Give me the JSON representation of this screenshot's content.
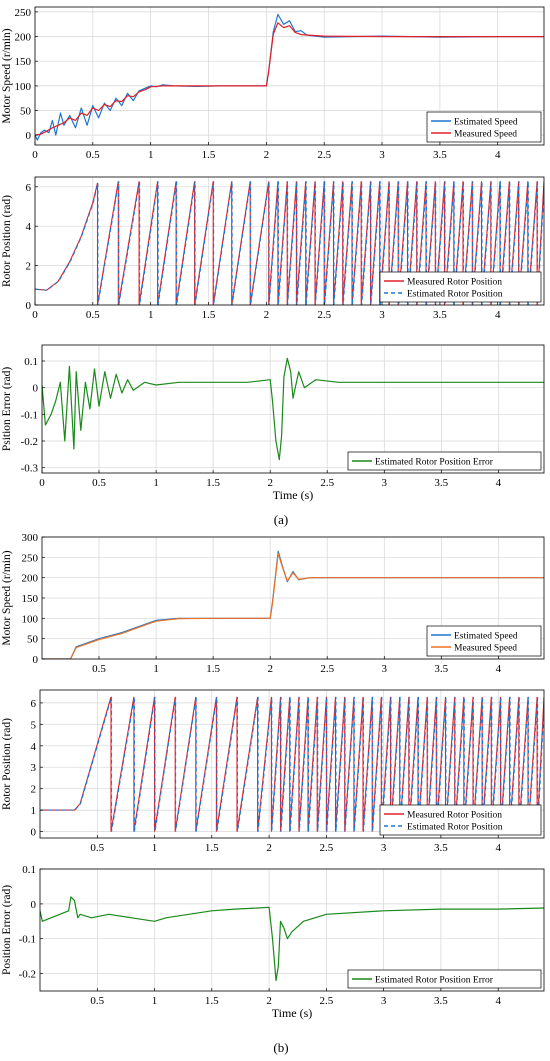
{
  "colors": {
    "blue": "#1f77d0",
    "red": "#e0202a",
    "orange": "#f07020",
    "green": "#1a8a1a",
    "grid": "#d6d6d6",
    "axis": "#000000"
  },
  "captions": {
    "a": "(a)",
    "b": "(b)"
  },
  "chart_data": [
    {
      "id": "a1",
      "type": "line",
      "ylabel": "Motor Speed (r/min)",
      "xlabel": "",
      "xlim": [
        0,
        4.4
      ],
      "ylim": [
        -20,
        260
      ],
      "xticks": [
        0,
        0.5,
        1,
        1.5,
        2,
        2.5,
        3,
        3.5,
        4
      ],
      "xtick_labels": [
        "0",
        "0.5",
        "1",
        "1.5",
        "2",
        "2.5",
        "3",
        "3.5",
        "4"
      ],
      "yticks": [
        0,
        50,
        100,
        150,
        200,
        250
      ],
      "ytick_labels": [
        "0",
        "50",
        "100",
        "150",
        "200",
        "250"
      ],
      "grid": true,
      "legend": "bottom-right",
      "series": [
        {
          "name": "Estimated Speed",
          "color": "#1f77d0",
          "style": "solid",
          "x": [
            0,
            0.02,
            0.05,
            0.08,
            0.12,
            0.15,
            0.18,
            0.22,
            0.25,
            0.3,
            0.35,
            0.4,
            0.45,
            0.5,
            0.55,
            0.6,
            0.65,
            0.7,
            0.75,
            0.8,
            0.85,
            0.9,
            0.95,
            1.0,
            1.05,
            1.1,
            1.2,
            1.4,
            1.6,
            1.8,
            2.0,
            2.02,
            2.06,
            2.1,
            2.15,
            2.2,
            2.25,
            2.3,
            2.35,
            2.5,
            3.0,
            3.5,
            4.0,
            4.4
          ],
          "y": [
            0,
            -10,
            5,
            10,
            5,
            30,
            0,
            45,
            20,
            40,
            15,
            55,
            20,
            60,
            35,
            65,
            50,
            75,
            60,
            85,
            70,
            90,
            95,
            100,
            98,
            102,
            100,
            99,
            100,
            100,
            100,
            130,
            210,
            245,
            225,
            232,
            210,
            212,
            203,
            199,
            201,
            199,
            200,
            200
          ]
        },
        {
          "name": "Measured Speed",
          "color": "#e0202a",
          "style": "solid",
          "x": [
            0,
            0.05,
            0.1,
            0.15,
            0.2,
            0.25,
            0.3,
            0.35,
            0.4,
            0.45,
            0.5,
            0.55,
            0.6,
            0.65,
            0.7,
            0.75,
            0.8,
            0.85,
            0.9,
            0.95,
            1.0,
            1.1,
            1.2,
            1.4,
            1.6,
            1.8,
            2.0,
            2.02,
            2.06,
            2.1,
            2.15,
            2.2,
            2.25,
            2.3,
            2.5,
            3.0,
            3.5,
            4.0,
            4.4
          ],
          "y": [
            0,
            2,
            8,
            15,
            20,
            25,
            35,
            30,
            45,
            40,
            55,
            50,
            62,
            58,
            70,
            68,
            80,
            78,
            88,
            92,
            98,
            100,
            100,
            100,
            100,
            100,
            100,
            130,
            205,
            228,
            218,
            222,
            208,
            204,
            201,
            200,
            200,
            200,
            200
          ]
        }
      ]
    },
    {
      "id": "a2",
      "type": "line",
      "ylabel": "Rotor Position (rad)",
      "xlabel": "",
      "xlim": [
        0,
        4.4
      ],
      "ylim": [
        0,
        6.5
      ],
      "xticks": [
        0,
        0.5,
        1,
        1.5,
        2,
        2.5,
        3,
        3.5,
        4
      ],
      "xtick_labels": [
        "0",
        "0.5",
        "1",
        "1.5",
        "2",
        "2.5",
        "3",
        "3.5",
        "4"
      ],
      "yticks": [
        0,
        2,
        4,
        6
      ],
      "ytick_labels": [
        "0",
        "2",
        "4",
        "6"
      ],
      "grid": true,
      "legend": "bottom-right",
      "series": [
        {
          "name": "Measured Rotor Position",
          "color": "#e0202a",
          "style": "solid"
        },
        {
          "name": "Estimated Rotor Position",
          "color": "#1f77d0",
          "style": "dashed"
        }
      ],
      "sawtooth": {
        "start_value": 0.8,
        "ramp": {
          "x": [
            0,
            0.1,
            0.2,
            0.3,
            0.4,
            0.5,
            0.54
          ],
          "y": [
            0.8,
            0.75,
            1.2,
            2.2,
            3.5,
            5.2,
            6.2
          ]
        },
        "wrap_times": [
          0.54,
          0.72,
          0.9,
          1.06,
          1.22,
          1.38,
          1.54,
          1.7,
          1.86,
          2.02,
          2.1,
          2.18,
          2.26,
          2.34,
          2.42,
          2.5,
          2.58,
          2.66,
          2.74,
          2.82,
          2.9,
          2.98,
          3.06,
          3.14,
          3.22,
          3.3,
          3.38,
          3.46,
          3.54,
          3.62,
          3.7,
          3.78,
          3.86,
          3.94,
          4.02,
          4.1,
          4.18,
          4.26,
          4.34,
          4.4
        ]
      }
    },
    {
      "id": "a3",
      "type": "line",
      "ylabel": "Psition Error (rad)",
      "xlabel": "Time (s)",
      "xlim": [
        0,
        4.4
      ],
      "ylim": [
        -0.32,
        0.16
      ],
      "xticks": [
        0,
        0.5,
        1,
        1.5,
        2,
        2.5,
        3,
        3.5,
        4
      ],
      "xtick_labels": [
        "0",
        "0.5",
        "1",
        "1.5",
        "2",
        "2.5",
        "3",
        "3.5",
        "4"
      ],
      "yticks": [
        -0.3,
        -0.2,
        -0.1,
        0,
        0.1
      ],
      "ytick_labels": [
        "-0.3",
        "-0.2",
        "-0.1",
        "0",
        "0.1"
      ],
      "grid": true,
      "legend": "bottom-right",
      "series": [
        {
          "name": "Estimated Rotor Position Error",
          "color": "#1a8a1a",
          "style": "solid",
          "x": [
            0,
            0.03,
            0.08,
            0.12,
            0.16,
            0.2,
            0.24,
            0.28,
            0.3,
            0.34,
            0.38,
            0.42,
            0.46,
            0.5,
            0.55,
            0.6,
            0.65,
            0.7,
            0.75,
            0.8,
            0.9,
            1.0,
            1.2,
            1.5,
            1.8,
            2.0,
            2.02,
            2.05,
            2.08,
            2.1,
            2.12,
            2.15,
            2.18,
            2.2,
            2.25,
            2.3,
            2.4,
            2.6,
            3.0,
            3.5,
            4.0,
            4.4
          ],
          "y": [
            0.01,
            -0.14,
            -0.1,
            -0.05,
            0.02,
            -0.2,
            0.08,
            -0.23,
            0.06,
            -0.16,
            0.02,
            -0.08,
            0.07,
            -0.07,
            0.06,
            -0.04,
            0.05,
            -0.02,
            0.03,
            -0.01,
            0.02,
            0.01,
            0.02,
            0.02,
            0.02,
            0.03,
            -0.05,
            -0.2,
            -0.27,
            -0.18,
            0.04,
            0.11,
            0.06,
            -0.04,
            0.06,
            0.0,
            0.03,
            0.02,
            0.02,
            0.02,
            0.02,
            0.02
          ]
        }
      ]
    },
    {
      "id": "b1",
      "type": "line",
      "ylabel": "Motor Speed (r/min)",
      "xlabel": "",
      "xlim": [
        0,
        4.4
      ],
      "ylim": [
        0,
        300
      ],
      "xticks": [
        0.5,
        1,
        1.5,
        2,
        2.5,
        3,
        3.5,
        4
      ],
      "xtick_labels": [
        "0.5",
        "1",
        "1.5",
        "2",
        "2.5",
        "3",
        "3.5",
        "4"
      ],
      "yticks": [
        0,
        50,
        100,
        150,
        200,
        250,
        300
      ],
      "ytick_labels": [
        "0",
        "50",
        "100",
        "150",
        "200",
        "250",
        "300"
      ],
      "grid": true,
      "legend": "bottom-right",
      "series": [
        {
          "name": "Estimated Speed",
          "color": "#1f77d0",
          "style": "solid",
          "x": [
            0,
            0.25,
            0.3,
            0.35,
            0.5,
            0.7,
            0.9,
            1.0,
            1.2,
            1.5,
            1.8,
            2.0,
            2.02,
            2.07,
            2.1,
            2.15,
            2.2,
            2.25,
            2.35,
            2.5,
            3.0,
            3.5,
            4.0,
            4.4
          ],
          "y": [
            0,
            0,
            30,
            35,
            50,
            65,
            85,
            95,
            100,
            100,
            100,
            100,
            140,
            265,
            235,
            190,
            215,
            195,
            200,
            200,
            200,
            200,
            200,
            200
          ]
        },
        {
          "name": "Measured Speed",
          "color": "#f07020",
          "style": "solid",
          "x": [
            0,
            0.25,
            0.3,
            0.35,
            0.5,
            0.7,
            0.9,
            1.0,
            1.2,
            1.5,
            1.8,
            2.0,
            2.02,
            2.07,
            2.1,
            2.15,
            2.2,
            2.25,
            2.35,
            2.5,
            3.0,
            3.5,
            4.0,
            4.4
          ],
          "y": [
            0,
            0,
            28,
            33,
            48,
            63,
            83,
            93,
            99,
            100,
            100,
            100,
            138,
            260,
            232,
            192,
            212,
            196,
            200,
            200,
            200,
            200,
            200,
            200
          ]
        }
      ]
    },
    {
      "id": "b2",
      "type": "line",
      "ylabel": "Rotor Position (rad)",
      "xlabel": "",
      "xlim": [
        0,
        4.4
      ],
      "ylim": [
        -0.3,
        6.6
      ],
      "xticks": [
        0.5,
        1,
        1.5,
        2,
        2.5,
        3,
        3.5,
        4
      ],
      "xtick_labels": [
        "0.5",
        "1",
        "1.5",
        "2",
        "2.5",
        "3",
        "3.5",
        "4"
      ],
      "yticks": [
        0,
        1,
        2,
        3,
        4,
        5,
        6
      ],
      "ytick_labels": [
        "0",
        "1",
        "2",
        "3",
        "4",
        "5",
        "6"
      ],
      "grid": true,
      "legend": "bottom-right",
      "series": [
        {
          "name": "Measured Rotor Position",
          "color": "#e0202a",
          "style": "solid"
        },
        {
          "name": "Estimated Rotor Position",
          "color": "#1f77d0",
          "style": "dashed"
        }
      ],
      "sawtooth": {
        "start_value": 1.0,
        "ramp": {
          "x": [
            0,
            0.3,
            0.35,
            0.62
          ],
          "y": [
            1.0,
            1.0,
            1.3,
            6.28
          ]
        },
        "wrap_times": [
          0.62,
          0.82,
          1.0,
          1.18,
          1.36,
          1.54,
          1.72,
          1.9,
          2.02,
          2.1,
          2.18,
          2.26,
          2.34,
          2.42,
          2.5,
          2.58,
          2.66,
          2.74,
          2.82,
          2.9,
          2.98,
          3.06,
          3.14,
          3.22,
          3.3,
          3.38,
          3.46,
          3.54,
          3.62,
          3.7,
          3.78,
          3.86,
          3.94,
          4.02,
          4.1,
          4.18,
          4.26,
          4.34,
          4.4
        ]
      }
    },
    {
      "id": "b3",
      "type": "line",
      "ylabel": "Position Error (rad)",
      "xlabel": "Time (s)",
      "xlim": [
        0,
        4.4
      ],
      "ylim": [
        -0.25,
        0.1
      ],
      "xticks": [
        0.5,
        1,
        1.5,
        2,
        2.5,
        3,
        3.5,
        4
      ],
      "xtick_labels": [
        "0.5",
        "1",
        "1.5",
        "2",
        "2.5",
        "3",
        "3.5",
        "4"
      ],
      "yticks": [
        -0.2,
        -0.1,
        0,
        0.1
      ],
      "ytick_labels": [
        "-0.2",
        "-0.1",
        "0",
        "0.1"
      ],
      "grid": true,
      "legend": "bottom-right",
      "series": [
        {
          "name": "Estimated Rotor Position Error",
          "color": "#1a8a1a",
          "style": "solid",
          "x": [
            0,
            0.02,
            0.25,
            0.27,
            0.3,
            0.33,
            0.35,
            0.45,
            0.6,
            0.8,
            1.0,
            1.1,
            1.3,
            1.5,
            1.7,
            1.9,
            2.0,
            2.03,
            2.06,
            2.08,
            2.1,
            2.13,
            2.16,
            2.2,
            2.3,
            2.5,
            3.0,
            3.5,
            4.0,
            4.4
          ],
          "y": [
            -0.02,
            -0.05,
            -0.02,
            0.02,
            0.01,
            -0.04,
            -0.03,
            -0.04,
            -0.03,
            -0.04,
            -0.05,
            -0.04,
            -0.03,
            -0.02,
            -0.015,
            -0.012,
            -0.01,
            -0.1,
            -0.22,
            -0.18,
            -0.05,
            -0.07,
            -0.1,
            -0.08,
            -0.05,
            -0.03,
            -0.02,
            -0.015,
            -0.015,
            -0.012
          ]
        }
      ]
    }
  ]
}
